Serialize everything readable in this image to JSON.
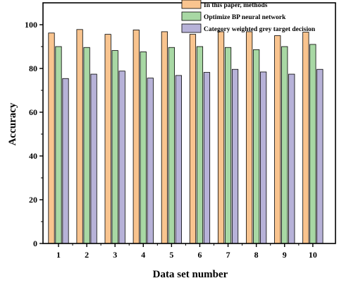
{
  "chart_data": {
    "type": "bar",
    "title": "",
    "xlabel": "Data set number",
    "ylabel": "Accuracy",
    "categories": [
      "1",
      "2",
      "3",
      "4",
      "5",
      "6",
      "7",
      "8",
      "9",
      "10"
    ],
    "ylim": [
      0,
      110
    ],
    "yticks": [
      0,
      20,
      40,
      60,
      80,
      100
    ],
    "grid": false,
    "legend_position": "top-right",
    "series": [
      {
        "name": "In this paper, methods",
        "color": "#F9C48F",
        "values": [
          96.2,
          97.8,
          95.6,
          97.6,
          96.8,
          95.6,
          96.8,
          96.8,
          95.0,
          96.6
        ]
      },
      {
        "name": "Optimize BP neural network",
        "color": "#A8D8A4",
        "values": [
          90.0,
          89.6,
          88.2,
          87.6,
          89.6,
          90.0,
          89.6,
          88.6,
          90.0,
          91.0
        ]
      },
      {
        "name": "Category weighted grey target decision",
        "color": "#B7B2D8",
        "values": [
          75.4,
          77.4,
          78.8,
          75.6,
          76.8,
          78.2,
          79.6,
          78.4,
          77.4,
          79.6
        ]
      }
    ]
  }
}
